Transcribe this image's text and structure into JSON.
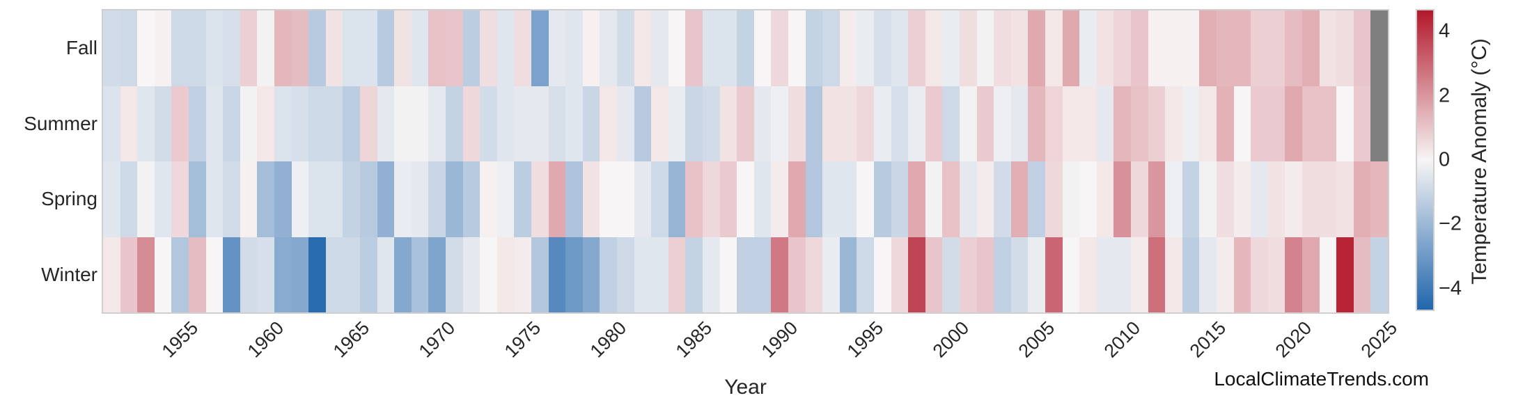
{
  "figure": {
    "background": "#ffffff",
    "watermark": "LocalClimateTrends.com"
  },
  "chart_data": {
    "type": "heatmap",
    "title": "",
    "xlabel": "Year",
    "ylabel": "",
    "x_start": 1951,
    "x_end": 2025,
    "x_ticks": [
      1955,
      1960,
      1965,
      1970,
      1975,
      1980,
      1985,
      1990,
      1995,
      2000,
      2005,
      2010,
      2015,
      2020,
      2025
    ],
    "rows": [
      "Fall",
      "Summer",
      "Spring",
      "Winter"
    ],
    "series": [
      {
        "name": "Fall",
        "values": [
          -0.8,
          -0.9,
          0.0,
          0.1,
          -0.9,
          -0.9,
          -0.6,
          -0.7,
          0.8,
          -0.1,
          1.3,
          1.2,
          -1.4,
          0.4,
          -0.6,
          -0.6,
          -1.4,
          0.4,
          -0.5,
          1.1,
          1.0,
          -1.3,
          0.5,
          -0.5,
          0.5,
          -2.7,
          -0.4,
          -0.5,
          0.1,
          -0.4,
          -0.8,
          0.3,
          -0.4,
          0.0,
          1.0,
          -0.6,
          -0.6,
          -1.1,
          0.0,
          0.6,
          0.0,
          -1.1,
          -0.9,
          0.2,
          -0.3,
          -0.7,
          -0.5,
          0.8,
          0.3,
          -0.3,
          0.5,
          -0.1,
          0.5,
          0.4,
          1.6,
          0.3,
          1.6,
          -0.3,
          0.4,
          0.7,
          1.0,
          0.1,
          0.1,
          0.1,
          1.5,
          1.3,
          1.3,
          0.8,
          0.8,
          1.2,
          1.5,
          0.4,
          0.5,
          1.0,
          null
        ]
      },
      {
        "name": "Summer",
        "values": [
          -0.6,
          0.3,
          -0.5,
          -0.8,
          0.9,
          -1.2,
          -0.5,
          -1.0,
          -0.1,
          0.3,
          -0.6,
          -0.7,
          -0.9,
          -0.9,
          -1.3,
          0.7,
          -0.4,
          -0.1,
          -0.1,
          -0.4,
          -1.1,
          0.6,
          -0.8,
          -0.5,
          -0.4,
          -0.4,
          -0.7,
          -0.5,
          -1.0,
          0.3,
          -0.4,
          -1.4,
          0.3,
          -0.3,
          -1.0,
          -0.8,
          0.4,
          0.9,
          -0.4,
          -0.2,
          0.5,
          -1.5,
          0.4,
          0.4,
          0.6,
          -0.3,
          -0.7,
          -0.3,
          0.9,
          -0.9,
          -0.1,
          0.9,
          -0.2,
          -0.4,
          1.3,
          0.7,
          0.3,
          0.3,
          -0.4,
          1.3,
          1.1,
          0.8,
          0.3,
          -0.2,
          0.3,
          1.4,
          0.0,
          0.9,
          0.9,
          1.6,
          1.1,
          1.1,
          0.0,
          0.9,
          null
        ]
      },
      {
        "name": "Spring",
        "values": [
          -0.5,
          -0.9,
          -0.1,
          -0.5,
          0.6,
          -1.8,
          -0.5,
          -0.8,
          0.1,
          -1.8,
          -2.2,
          -0.2,
          -0.6,
          -0.6,
          -1.1,
          -1.4,
          -2.2,
          -0.3,
          -0.4,
          -1.0,
          -2.0,
          -1.4,
          0.1,
          -0.2,
          -1.3,
          0.5,
          1.6,
          -1.6,
          0.4,
          0.0,
          0.0,
          -0.4,
          -0.9,
          -2.1,
          1.1,
          0.6,
          0.9,
          0.0,
          -0.5,
          0.2,
          1.6,
          -1.5,
          -0.5,
          -0.5,
          0.0,
          -1.4,
          -1.0,
          1.6,
          -0.1,
          1.1,
          -0.4,
          0.2,
          -0.8,
          1.5,
          -1.2,
          0.6,
          -0.1,
          0.0,
          0.3,
          2.1,
          0.6,
          2.0,
          -0.2,
          -1.1,
          -0.1,
          0.5,
          0.2,
          -0.4,
          0.4,
          0.2,
          0.5,
          0.5,
          0.4,
          1.5,
          1.3
        ]
      },
      {
        "name": "Winter",
        "values": [
          0.3,
          1.0,
          2.2,
          0.0,
          -1.5,
          1.2,
          0.0,
          -3.2,
          -0.8,
          -0.7,
          -2.4,
          -2.5,
          -4.5,
          -0.9,
          -0.9,
          -1.3,
          -0.5,
          -2.5,
          -1.7,
          -2.6,
          -0.8,
          -0.4,
          0.0,
          0.3,
          0.2,
          -1.5,
          -3.5,
          -3.0,
          -2.5,
          -1.2,
          -0.9,
          -0.5,
          -0.5,
          0.8,
          -1.1,
          -0.4,
          0.0,
          -1.2,
          -1.2,
          2.6,
          1.0,
          0.6,
          -0.3,
          -2.0,
          -0.9,
          0.0,
          0.6,
          3.7,
          1.0,
          -0.8,
          0.8,
          1.0,
          -1.2,
          -0.8,
          -0.3,
          3.0,
          0.0,
          0.3,
          -0.4,
          -0.4,
          0.2,
          2.8,
          0.3,
          -1.3,
          -0.4,
          0.2,
          1.3,
          0.6,
          0.5,
          2.4,
          1.6,
          0.0,
          4.4,
          1.2,
          -1.1
        ]
      }
    ],
    "colorbar": {
      "label": "Temperature Anomaly (°C)",
      "ticks": [
        4,
        2,
        0,
        -2,
        -4
      ],
      "vmin": -4.65,
      "vmax": 4.65,
      "color_negative": "#2166ac",
      "color_zero": "#f7f5f5",
      "color_positive": "#b2182b",
      "color_missing": "#7f7f7f"
    }
  }
}
